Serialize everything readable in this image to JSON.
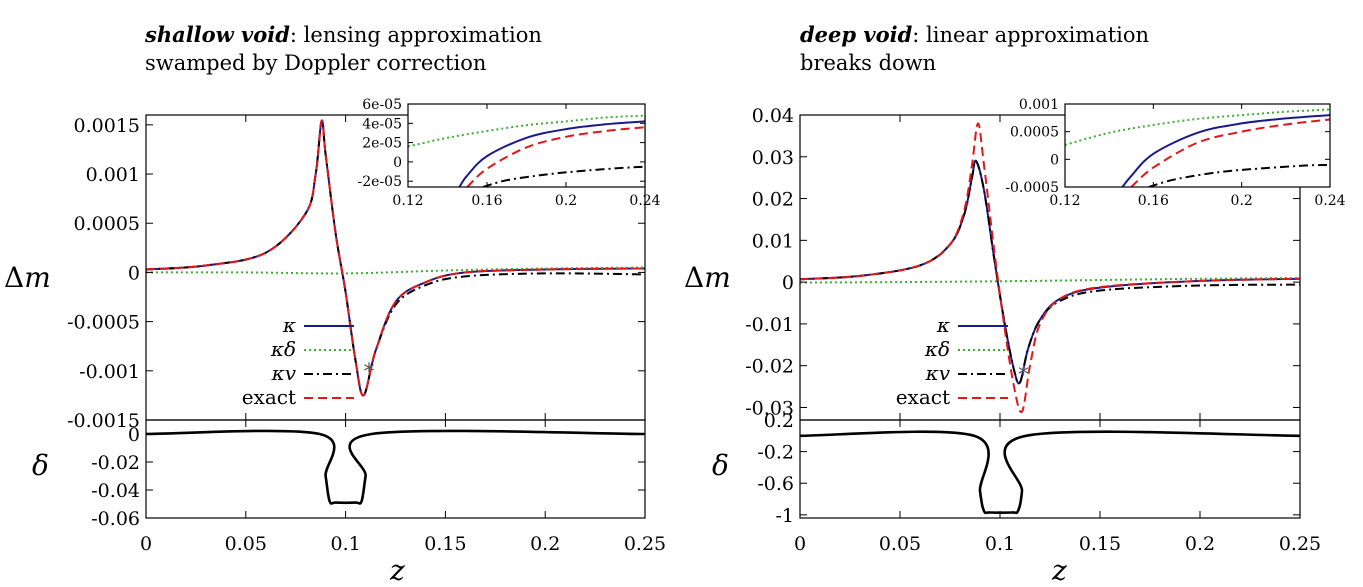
{
  "panels": [
    {
      "title_bold": "shallow void",
      "title_rest": ": lensing approximation",
      "title_line2": "swamped by Doppler correction"
    },
    {
      "title_bold": "deep void",
      "title_rest": ": linear approximation",
      "title_line2": "breaks down"
    }
  ],
  "chart_data": [
    {
      "type": "line",
      "panel": "shallow void (main)",
      "xlabel": "z",
      "ylabel": "Δm",
      "xlim": [
        0,
        0.25
      ],
      "ylim": [
        -0.0015,
        0.0016
      ],
      "x_ticks": [
        "0",
        "0.05",
        "0.1",
        "0.15",
        "0.2",
        "0.25"
      ],
      "y_ticks": [
        "0.0015",
        "0.001",
        "0.0005",
        "0",
        "-0.0005",
        "-0.001",
        "-0.0015"
      ],
      "legend": [
        "κ",
        "κδ",
        "κv",
        "exact"
      ],
      "legend_position": "bottom-left",
      "marker": {
        "x": 0.112,
        "y": -0.001,
        "symbol": "*"
      },
      "series": [
        {
          "name": "κ",
          "color": "#1a1a8c",
          "style": "solid",
          "x": [
            0,
            0.03,
            0.06,
            0.08,
            0.085,
            0.088,
            0.09,
            0.095,
            0.1,
            0.105,
            0.109,
            0.115,
            0.125,
            0.14,
            0.16,
            0.2,
            0.25
          ],
          "y": [
            3e-05,
            7e-05,
            0.0002,
            0.0006,
            0.001,
            0.00154,
            0.0012,
            0.0004,
            -0.0002,
            -0.0009,
            -0.00125,
            -0.0008,
            -0.0003,
            -0.0001,
            0.0,
            3e-05,
            4e-05
          ]
        },
        {
          "name": "κδ",
          "color": "#3cb030",
          "style": "dotted",
          "x": [
            0,
            0.05,
            0.1,
            0.15,
            0.2,
            0.25
          ],
          "y": [
            0.0,
            0.0,
            -1e-05,
            2e-05,
            4e-05,
            5e-05
          ]
        },
        {
          "name": "κv",
          "color": "#000000",
          "style": "dashdot",
          "x": [
            0,
            0.03,
            0.06,
            0.08,
            0.085,
            0.088,
            0.09,
            0.095,
            0.1,
            0.105,
            0.109,
            0.115,
            0.125,
            0.14,
            0.16,
            0.2,
            0.25
          ],
          "y": [
            3e-05,
            7e-05,
            0.0002,
            0.0006,
            0.001,
            0.00154,
            0.0012,
            0.0004,
            -0.0002,
            -0.0009,
            -0.00125,
            -0.0008,
            -0.00033,
            -0.00013,
            -4e-05,
            -1e-05,
            -2e-05
          ]
        },
        {
          "name": "exact",
          "color": "#e01818",
          "style": "dashed",
          "x": [
            0,
            0.03,
            0.06,
            0.08,
            0.085,
            0.088,
            0.09,
            0.095,
            0.1,
            0.105,
            0.109,
            0.115,
            0.125,
            0.14,
            0.16,
            0.2,
            0.25
          ],
          "y": [
            3e-05,
            7e-05,
            0.0002,
            0.0006,
            0.001,
            0.00154,
            0.0012,
            0.0004,
            -0.0002,
            -0.0009,
            -0.00125,
            -0.0008,
            -0.0003,
            -0.0001,
            0.0,
            3e-05,
            4e-05
          ]
        }
      ]
    },
    {
      "type": "line",
      "panel": "shallow void (inset)",
      "xlim": [
        0.12,
        0.24
      ],
      "ylim": [
        -2.6e-05,
        6e-05
      ],
      "x_ticks": [
        "0.12",
        "0.16",
        "0.2",
        "0.24"
      ],
      "y_ticks": [
        "6e-05",
        "4e-05",
        "2e-05",
        "0",
        "-2e-05"
      ],
      "series": [
        {
          "name": "κ",
          "color": "#1a1a8c",
          "style": "solid",
          "x": [
            0.146,
            0.15,
            0.16,
            0.18,
            0.2,
            0.22,
            0.24
          ],
          "y": [
            -2.6e-05,
            -1.4e-05,
            6e-06,
            2.5e-05,
            3.4e-05,
            3.9e-05,
            4.2e-05
          ]
        },
        {
          "name": "κδ",
          "color": "#3cb030",
          "style": "dotted",
          "x": [
            0.12,
            0.14,
            0.16,
            0.18,
            0.2,
            0.22,
            0.24
          ],
          "y": [
            1.6e-05,
            2.5e-05,
            3.2e-05,
            3.8e-05,
            4.2e-05,
            4.6e-05,
            4.8e-05
          ]
        },
        {
          "name": "κv",
          "color": "#000000",
          "style": "dashdot",
          "x": [
            0.158,
            0.17,
            0.19,
            0.21,
            0.23,
            0.24
          ],
          "y": [
            -2.6e-05,
            -1.9e-05,
            -1.3e-05,
            -9e-06,
            -6e-06,
            -5e-06
          ]
        },
        {
          "name": "exact",
          "color": "#e01818",
          "style": "dashed",
          "x": [
            0.15,
            0.16,
            0.18,
            0.2,
            0.22,
            0.24
          ],
          "y": [
            -2.6e-05,
            -7e-06,
            1.5e-05,
            2.6e-05,
            3.2e-05,
            3.6e-05
          ]
        }
      ]
    },
    {
      "type": "line",
      "panel": "shallow void (density)",
      "xlabel": "z",
      "ylabel": "δ",
      "xlim": [
        0,
        0.25
      ],
      "ylim": [
        -0.06,
        0.01
      ],
      "y_ticks": [
        "0",
        "-0.02",
        "-0.04",
        "-0.06"
      ],
      "series": [
        {
          "name": "δ",
          "color": "#000000",
          "style": "solid",
          "x": [
            0,
            0.087,
            0.09,
            0.092,
            0.095,
            0.105,
            0.108,
            0.11,
            0.113,
            0.25
          ],
          "y": [
            0,
            0,
            -0.03,
            -0.048,
            -0.049,
            -0.049,
            -0.048,
            -0.03,
            0,
            0
          ]
        }
      ]
    },
    {
      "type": "line",
      "panel": "deep void (main)",
      "xlabel": "z",
      "ylabel": "Δm",
      "xlim": [
        0,
        0.25
      ],
      "ylim": [
        -0.033,
        0.04
      ],
      "x_ticks": [
        "0",
        "0.05",
        "0.1",
        "0.15",
        "0.2",
        "0.25"
      ],
      "y_ticks": [
        "0.04",
        "0.03",
        "0.02",
        "0.01",
        "0",
        "-0.01",
        "-0.02",
        "-0.03"
      ],
      "legend": [
        "κ",
        "κδ",
        "κv",
        "exact"
      ],
      "legend_position": "bottom-left",
      "marker": {
        "x": 0.112,
        "y": -0.022,
        "symbol": "*"
      },
      "series": [
        {
          "name": "κ",
          "color": "#1a1a8c",
          "style": "solid",
          "x": [
            0,
            0.03,
            0.06,
            0.075,
            0.082,
            0.086,
            0.088,
            0.092,
            0.097,
            0.102,
            0.107,
            0.11,
            0.114,
            0.12,
            0.13,
            0.15,
            0.2,
            0.25
          ],
          "y": [
            0.0007,
            0.0015,
            0.004,
            0.009,
            0.016,
            0.025,
            0.029,
            0.022,
            0.006,
            -0.009,
            -0.021,
            -0.024,
            -0.016,
            -0.009,
            -0.004,
            -0.0013,
            0.0003,
            0.0008
          ]
        },
        {
          "name": "κδ",
          "color": "#3cb030",
          "style": "dotted",
          "x": [
            0,
            0.05,
            0.1,
            0.15,
            0.2,
            0.25
          ],
          "y": [
            -0.0001,
            0.0,
            0.0002,
            0.0005,
            0.0008,
            0.001
          ]
        },
        {
          "name": "κv",
          "color": "#000000",
          "style": "dashdot",
          "x": [
            0,
            0.03,
            0.06,
            0.075,
            0.082,
            0.086,
            0.088,
            0.092,
            0.097,
            0.102,
            0.107,
            0.11,
            0.114,
            0.12,
            0.13,
            0.15,
            0.2,
            0.25
          ],
          "y": [
            0.0007,
            0.0015,
            0.004,
            0.009,
            0.016,
            0.025,
            0.029,
            0.022,
            0.006,
            -0.009,
            -0.021,
            -0.024,
            -0.016,
            -0.009,
            -0.0045,
            -0.002,
            -0.0008,
            -0.0006
          ]
        },
        {
          "name": "exact",
          "color": "#e01818",
          "style": "dashed",
          "x": [
            0,
            0.03,
            0.06,
            0.075,
            0.082,
            0.086,
            0.089,
            0.092,
            0.097,
            0.102,
            0.107,
            0.111,
            0.115,
            0.12,
            0.13,
            0.15,
            0.2,
            0.25
          ],
          "y": [
            0.0007,
            0.0015,
            0.004,
            0.009,
            0.017,
            0.028,
            0.038,
            0.028,
            0.008,
            -0.01,
            -0.025,
            -0.031,
            -0.02,
            -0.01,
            -0.004,
            -0.0012,
            0.0003,
            0.0008
          ]
        }
      ]
    },
    {
      "type": "line",
      "panel": "deep void (inset)",
      "xlim": [
        0.12,
        0.24
      ],
      "ylim": [
        -0.0005,
        0.001
      ],
      "x_ticks": [
        "0.12",
        "0.16",
        "0.2",
        "0.24"
      ],
      "y_ticks": [
        "0.001",
        "0.0005",
        "0",
        "-0.0005"
      ],
      "series": [
        {
          "name": "κ",
          "color": "#1a1a8c",
          "style": "solid",
          "x": [
            0.146,
            0.15,
            0.16,
            0.18,
            0.2,
            0.22,
            0.24
          ],
          "y": [
            -0.0005,
            -0.0003,
            0.0001,
            0.00048,
            0.00065,
            0.00074,
            0.0008
          ]
        },
        {
          "name": "κδ",
          "color": "#3cb030",
          "style": "dotted",
          "x": [
            0.12,
            0.14,
            0.16,
            0.18,
            0.2,
            0.22,
            0.24
          ],
          "y": [
            0.00026,
            0.00048,
            0.00062,
            0.00073,
            0.0008,
            0.00086,
            0.0009
          ]
        },
        {
          "name": "κv",
          "color": "#000000",
          "style": "dashdot",
          "x": [
            0.158,
            0.17,
            0.19,
            0.21,
            0.23,
            0.24
          ],
          "y": [
            -0.0005,
            -0.00036,
            -0.00023,
            -0.00016,
            -0.00011,
            -0.0001
          ]
        },
        {
          "name": "exact",
          "color": "#e01818",
          "style": "dashed",
          "x": [
            0.15,
            0.16,
            0.18,
            0.2,
            0.22,
            0.24
          ],
          "y": [
            -0.0005,
            -0.00015,
            0.0003,
            0.0005,
            0.00063,
            0.00072
          ]
        }
      ]
    },
    {
      "type": "line",
      "panel": "deep void (density)",
      "xlabel": "z",
      "ylabel": "δ",
      "xlim": [
        0,
        0.25
      ],
      "ylim": [
        -1.04,
        0.2
      ],
      "y_ticks": [
        "0.2",
        "-0.2",
        "-0.6",
        "-1"
      ],
      "series": [
        {
          "name": "δ",
          "color": "#000000",
          "style": "solid",
          "x": [
            0,
            0.087,
            0.09,
            0.092,
            0.095,
            0.106,
            0.109,
            0.111,
            0.113,
            0.25
          ],
          "y": [
            0,
            0,
            -0.7,
            -0.95,
            -0.97,
            -0.97,
            -0.95,
            -0.7,
            0,
            0
          ]
        }
      ]
    }
  ]
}
